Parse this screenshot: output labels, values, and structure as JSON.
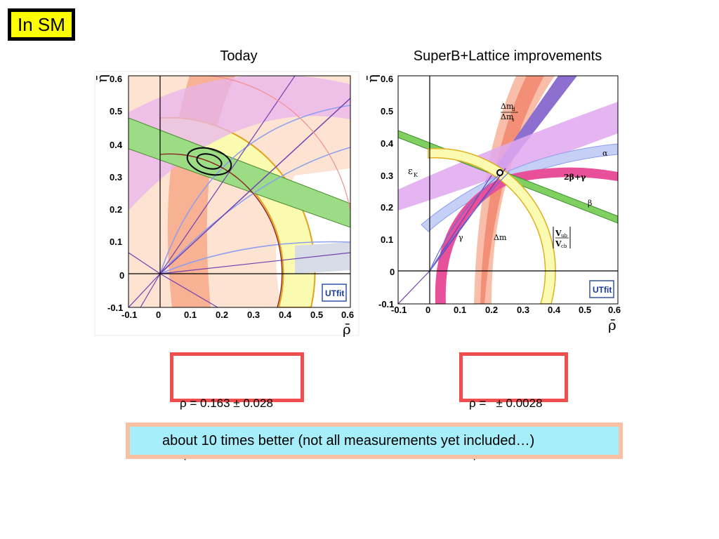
{
  "badge": {
    "label": "In SM"
  },
  "panels": {
    "left": {
      "title": "Today",
      "x_ticks": [
        "-0.1",
        "0",
        "0.1",
        "0.2",
        "0.3",
        "0.4",
        "0.5",
        "0.6"
      ],
      "y_ticks": [
        "0.6",
        "0.5",
        "0.4",
        "0.3",
        "0.2",
        "0.1",
        "0",
        "-0.1"
      ],
      "xlabel": "ρ̄",
      "ylabel": "η̄",
      "logo": "UTfit"
    },
    "right": {
      "title": "SuperB+Lattice improvements",
      "x_ticks": [
        "-0.1",
        "0",
        "0.1",
        "0.2",
        "0.3",
        "0.4",
        "0.5",
        "0.6"
      ],
      "y_ticks": [
        "0.6",
        "0.5",
        "0.4",
        "0.3",
        "0.2",
        "0.1",
        "0",
        "-0.1"
      ],
      "xlabel": "ρ̄",
      "ylabel": "η̄",
      "logo": "UTfit",
      "labels": {
        "dmd_dms_num": "Δm",
        "dmd_dms_den": "Δm",
        "sub_d": "d",
        "sub_s": "s",
        "eps_k": "ε",
        "eps_sub": "K",
        "alpha": "α",
        "beta": "β",
        "two_beta_gamma": "2β+γ",
        "gamma": "γ",
        "dmd": "Δm",
        "vub": "V",
        "vub_sub": "ub",
        "vcb": "V",
        "vcb_sub": "cb"
      }
    }
  },
  "results": {
    "left": {
      "line1": "ρ = 0.163 ± 0.028",
      "line2": "η  = 0.344± 0.016"
    },
    "right": {
      "line1": "ρ =   ± 0.0028",
      "line2": "η  =  ± 0.0024"
    }
  },
  "banner": {
    "text": "about 10 times better (not all measurements yet included…)"
  },
  "colors": {
    "result_border": "#ee4e4e",
    "banner_outer": "#f8c0a4",
    "banner_inner": "#a6eefa",
    "badge_bg": "#ffff00"
  }
}
